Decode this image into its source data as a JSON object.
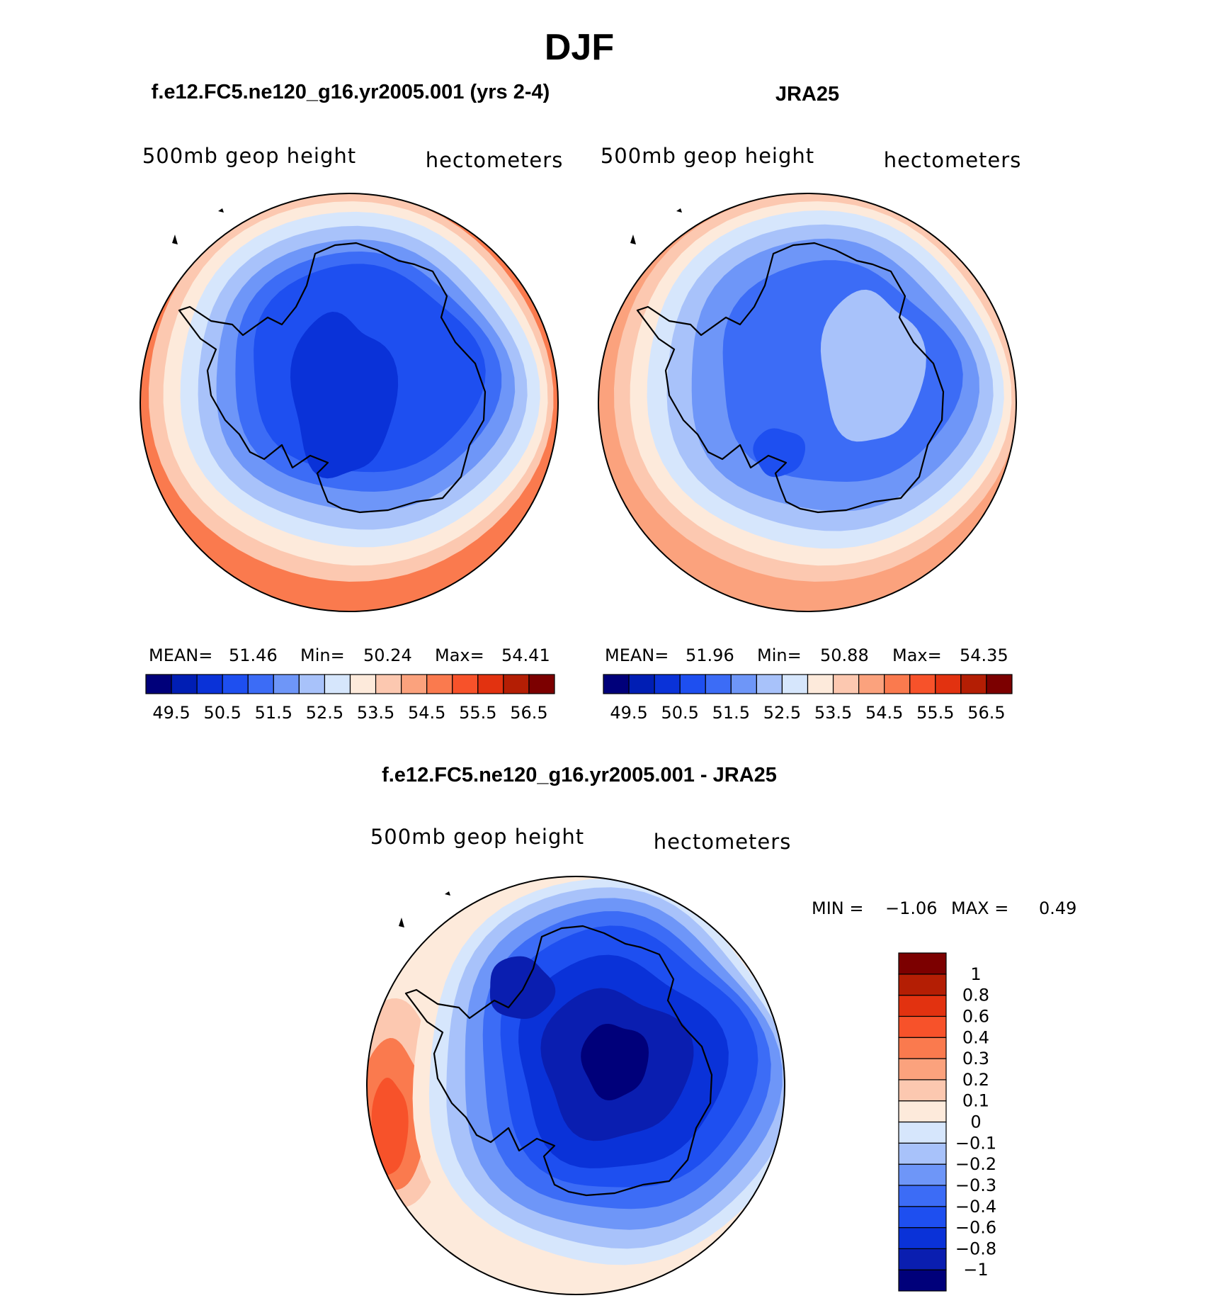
{
  "figure": {
    "title": "DJF"
  },
  "palette": {
    "abs": [
      "#00007a",
      "#001eb4",
      "#0a32d8",
      "#1e4ff0",
      "#3c6cf6",
      "#6e96f8",
      "#a8c2fa",
      "#d6e6fc",
      "#fdeadb",
      "#fcc8b0",
      "#fba27d",
      "#fa7a4e",
      "#f7522a",
      "#e23210",
      "#b41e04",
      "#7c0000"
    ],
    "diff": [
      "#00007a",
      "#0a1eb0",
      "#0a32d8",
      "#1e4ff0",
      "#3c6cf6",
      "#6e96f8",
      "#a8c2fa",
      "#d6e6fc",
      "#fdeadb",
      "#fcc8b0",
      "#fba27d",
      "#fa7a4e",
      "#f7522a",
      "#e23210",
      "#b41e04",
      "#7c0000"
    ],
    "coast": "#000000"
  },
  "chart_data": [
    {
      "type": "heatmap",
      "projection": "south-polar-stereographic",
      "title": "f.e12.FC5.ne120_g16.yr2005.001 (yrs 2-4)",
      "left_label": "500mb geop height",
      "right_label": "hectometers",
      "stats": {
        "mean_label": "MEAN=",
        "mean": "51.46",
        "min_label": "Min=",
        "min": "50.24",
        "max_label": "Max=",
        "max": "54.41"
      },
      "levels": [
        49.5,
        50,
        50.5,
        51,
        51.5,
        52,
        52.5,
        53,
        53.5,
        54,
        54.5,
        55,
        55.5,
        56,
        56.5
      ],
      "colorbar_labels": [
        "49.5",
        "50.5",
        "51.5",
        "52.5",
        "53.5",
        "54.5",
        "55.5",
        "56.5"
      ],
      "colorbar_orientation": "horizontal",
      "contour_bands": [
        {
          "level_index": 9,
          "value": 54.0
        },
        {
          "level_index": 8,
          "value": 53.5
        },
        {
          "level_index": 7,
          "value": 53.0
        },
        {
          "level_index": 6,
          "value": 52.5
        },
        {
          "level_index": 5,
          "value": 52.0
        },
        {
          "level_index": 4,
          "value": 51.5
        },
        {
          "level_index": 3,
          "value": 51.0
        },
        {
          "level_index": 2,
          "value": 50.5
        }
      ]
    },
    {
      "type": "heatmap",
      "projection": "south-polar-stereographic",
      "title": "JRA25",
      "left_label": "500mb geop height",
      "right_label": "hectometers",
      "stats": {
        "mean_label": "MEAN=",
        "mean": "51.96",
        "min_label": "Min=",
        "min": "50.88",
        "max_label": "Max=",
        "max": "54.35"
      },
      "levels": [
        49.5,
        50,
        50.5,
        51,
        51.5,
        52,
        52.5,
        53,
        53.5,
        54,
        54.5,
        55,
        55.5,
        56,
        56.5
      ],
      "colorbar_labels": [
        "49.5",
        "50.5",
        "51.5",
        "52.5",
        "53.5",
        "54.5",
        "55.5",
        "56.5"
      ],
      "colorbar_orientation": "horizontal",
      "contour_bands": [
        {
          "level_index": 9,
          "value": 54.0
        },
        {
          "level_index": 8,
          "value": 53.5
        },
        {
          "level_index": 7,
          "value": 53.0
        },
        {
          "level_index": 6,
          "value": 52.5
        },
        {
          "level_index": 5,
          "value": 52.0
        },
        {
          "level_index": 4,
          "value": 51.5
        },
        {
          "level_index": 6,
          "value": 52.5
        },
        {
          "level_index": 3,
          "value": 51.0
        }
      ]
    },
    {
      "type": "heatmap",
      "projection": "south-polar-stereographic",
      "title": "f.e12.FC5.ne120_g16.yr2005.001 - JRA25",
      "left_label": "500mb geop height",
      "right_label": "hectometers",
      "stats": {
        "min_label": "MIN =",
        "min": "−1.06",
        "max_label": "MAX =",
        "max": "0.49"
      },
      "levels": [
        -1,
        -0.8,
        -0.6,
        -0.4,
        -0.3,
        -0.2,
        -0.1,
        0,
        0.1,
        0.2,
        0.3,
        0.4,
        0.6,
        0.8,
        1
      ],
      "colorbar_labels": [
        "1",
        "0.8",
        "0.6",
        "0.4",
        "0.3",
        "0.2",
        "0.1",
        "0",
        "−0.1",
        "−0.2",
        "−0.3",
        "−0.4",
        "−0.6",
        "−0.8",
        "−1"
      ],
      "colorbar_orientation": "vertical",
      "contour_bands": [
        {
          "level_index": 8,
          "value": 0.1
        },
        {
          "level_index": 7,
          "value": 0.0
        },
        {
          "level_index": 6,
          "value": -0.1
        },
        {
          "level_index": 5,
          "value": -0.2
        },
        {
          "level_index": 4,
          "value": -0.3
        },
        {
          "level_index": 3,
          "value": -0.4
        },
        {
          "level_index": 2,
          "value": -0.6
        },
        {
          "level_index": 1,
          "value": -0.8
        },
        {
          "level_index": 0,
          "value": -1.0
        }
      ]
    }
  ]
}
